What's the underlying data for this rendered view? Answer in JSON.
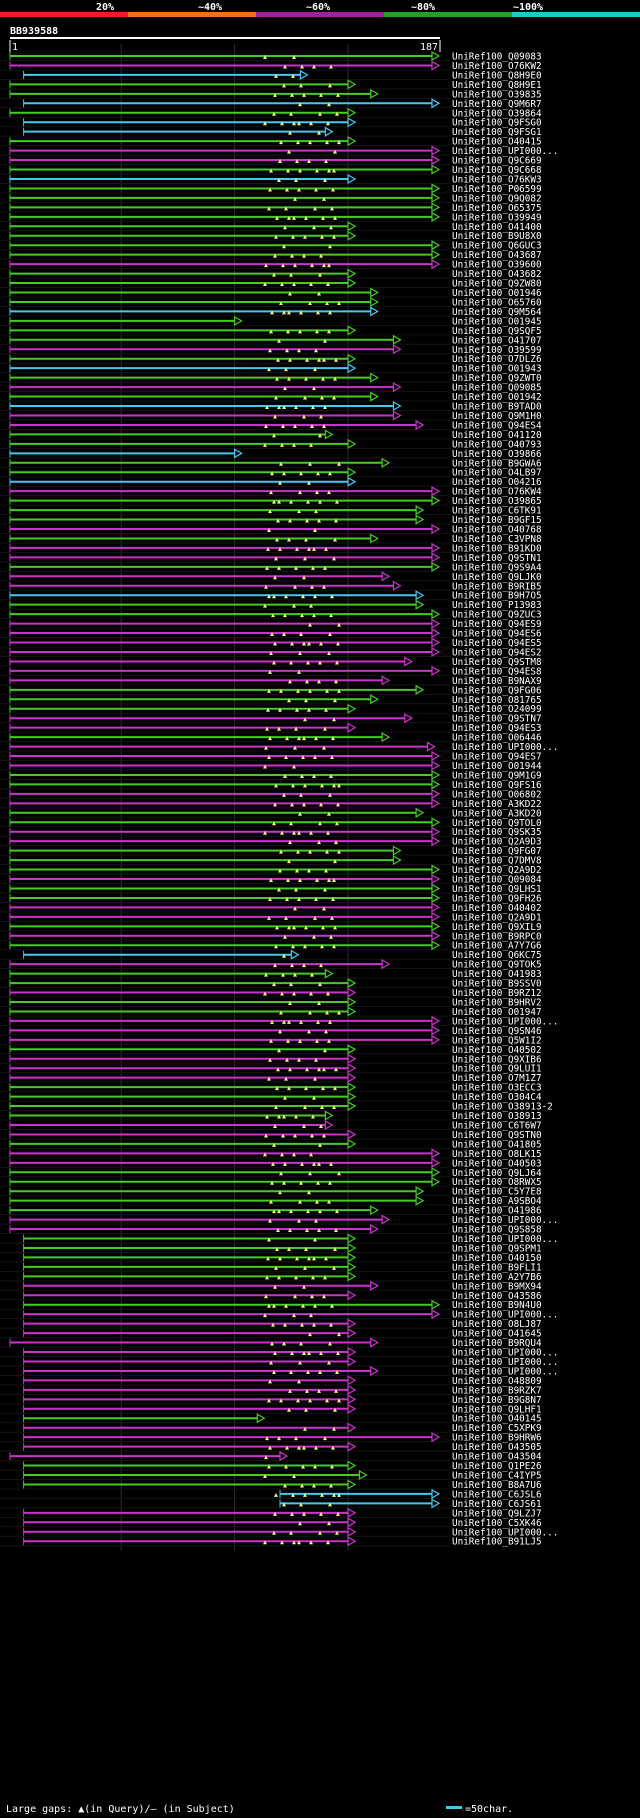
{
  "chart_data": {
    "type": "alignment-overview",
    "query_id": "BB939588",
    "query_start": "1",
    "query_end": "187",
    "query_length": 187,
    "scale": {
      "labels": [
        "20%",
        "~40%",
        "~60%",
        "~80%",
        "~100%"
      ],
      "colors": [
        "#ee1c24",
        "#f07020",
        "#a020a0",
        "#22a020",
        "#22c8c8"
      ]
    },
    "series_colors": {
      "cyan": "#44c8ee",
      "green": "#44cc22",
      "magenta": "#cc33cc",
      "gap_marker": "#eeee88"
    },
    "hits": [
      {
        "id": "UniRef100_Q09083",
        "color": "green",
        "start": 1,
        "end": 187
      },
      {
        "id": "UniRef100_O76KW2",
        "color": "magenta",
        "start": 1,
        "end": 187
      },
      {
        "id": "UniRef100_Q8H9E0",
        "color": "cyan",
        "start": 7,
        "end": 129
      },
      {
        "id": "UniRef100_Q8H9E1",
        "color": "green",
        "start": 1,
        "end": 150
      },
      {
        "id": "UniRef100_O39835",
        "color": "green",
        "start": 1,
        "end": 160
      },
      {
        "id": "UniRef100_Q9M6R7",
        "color": "cyan",
        "start": 7,
        "end": 187
      },
      {
        "id": "UniRef100_O39864",
        "color": "green",
        "start": 1,
        "end": 150
      },
      {
        "id": "UniRef100_Q9FSG0",
        "color": "cyan",
        "start": 7,
        "end": 150
      },
      {
        "id": "UniRef100_Q9FSG1",
        "color": "cyan",
        "start": 7,
        "end": 140
      },
      {
        "id": "UniRef100_O40415",
        "color": "green",
        "start": 1,
        "end": 150
      },
      {
        "id": "UniRef100_UPI000...",
        "color": "magenta",
        "start": 1,
        "end": 187
      },
      {
        "id": "UniRef100_Q9C669",
        "color": "magenta",
        "start": 1,
        "end": 187
      },
      {
        "id": "UniRef100_Q9C668",
        "color": "green",
        "start": 1,
        "end": 187
      },
      {
        "id": "UniRef100_O76KW3",
        "color": "cyan",
        "start": 1,
        "end": 150
      },
      {
        "id": "UniRef100_P06599",
        "color": "green",
        "start": 1,
        "end": 187
      },
      {
        "id": "UniRef100_Q9Q082",
        "color": "green",
        "start": 1,
        "end": 187
      },
      {
        "id": "UniRef100_O65375",
        "color": "green",
        "start": 1,
        "end": 187
      },
      {
        "id": "UniRef100_O39949",
        "color": "green",
        "start": 1,
        "end": 187
      },
      {
        "id": "UniRef100_O41400",
        "color": "green",
        "start": 1,
        "end": 150
      },
      {
        "id": "UniRef100_B9U8X0",
        "color": "green",
        "start": 1,
        "end": 150
      },
      {
        "id": "UniRef100_Q6GUC3",
        "color": "green",
        "start": 1,
        "end": 187
      },
      {
        "id": "UniRef100_O43687",
        "color": "green",
        "start": 1,
        "end": 187
      },
      {
        "id": "UniRef100_O39600",
        "color": "magenta",
        "start": 1,
        "end": 187
      },
      {
        "id": "UniRef100_O43682",
        "color": "green",
        "start": 1,
        "end": 150
      },
      {
        "id": "UniRef100_Q9ZW80",
        "color": "green",
        "start": 1,
        "end": 150
      },
      {
        "id": "UniRef100_O01946",
        "color": "green",
        "start": 1,
        "end": 160
      },
      {
        "id": "UniRef100_O65760",
        "color": "green",
        "start": 1,
        "end": 160
      },
      {
        "id": "UniRef100_Q9M564",
        "color": "cyan",
        "start": 1,
        "end": 160
      },
      {
        "id": "UniRef100_O01945",
        "color": "green",
        "start": 1,
        "end": 100
      },
      {
        "id": "UniRef100_Q9SQF5",
        "color": "green",
        "start": 1,
        "end": 150
      },
      {
        "id": "UniRef100_O41707",
        "color": "green",
        "start": 1,
        "end": 170
      },
      {
        "id": "UniRef100_O39599",
        "color": "magenta",
        "start": 1,
        "end": 170
      },
      {
        "id": "UniRef100_O7DLZ6",
        "color": "green",
        "start": 1,
        "end": 150
      },
      {
        "id": "UniRef100_O01943",
        "color": "cyan",
        "start": 1,
        "end": 150
      },
      {
        "id": "UniRef100_Q9ZWT0",
        "color": "green",
        "start": 1,
        "end": 160
      },
      {
        "id": "UniRef100_Q09085",
        "color": "magenta",
        "start": 1,
        "end": 170
      },
      {
        "id": "UniRef100_O01942",
        "color": "green",
        "start": 1,
        "end": 160
      },
      {
        "id": "UniRef100_B9TAD0",
        "color": "cyan",
        "start": 1,
        "end": 170
      },
      {
        "id": "UniRef100_Q9M1H0",
        "color": "magenta",
        "start": 1,
        "end": 170
      },
      {
        "id": "UniRef100_Q94ES4",
        "color": "magenta",
        "start": 1,
        "end": 180
      },
      {
        "id": "UniRef100_O41120",
        "color": "green",
        "start": 1,
        "end": 140
      },
      {
        "id": "UniRef100_O40793",
        "color": "green",
        "start": 1,
        "end": 150
      },
      {
        "id": "UniRef100_O39866",
        "color": "cyan",
        "start": 1,
        "end": 100
      },
      {
        "id": "UniRef100_B9GWA6",
        "color": "green",
        "start": 1,
        "end": 165
      },
      {
        "id": "UniRef100_O4LB97",
        "color": "green",
        "start": 1,
        "end": 150
      },
      {
        "id": "UniRef100_O04216",
        "color": "cyan",
        "start": 1,
        "end": 150
      },
      {
        "id": "UniRef100_O76KW4",
        "color": "magenta",
        "start": 1,
        "end": 187
      },
      {
        "id": "UniRef100_O39865",
        "color": "green",
        "start": 1,
        "end": 187
      },
      {
        "id": "UniRef100_C6TK91",
        "color": "green",
        "start": 1,
        "end": 180
      },
      {
        "id": "UniRef100_B9GF15",
        "color": "green",
        "start": 1,
        "end": 180
      },
      {
        "id": "UniRef100_O40768",
        "color": "magenta",
        "start": 1,
        "end": 187
      },
      {
        "id": "UniRef100_C3VPN8",
        "color": "green",
        "start": 1,
        "end": 160
      },
      {
        "id": "UniRef100_B91KD0",
        "color": "magenta",
        "start": 1,
        "end": 187
      },
      {
        "id": "UniRef100_Q9STN1",
        "color": "magenta",
        "start": 1,
        "end": 187
      },
      {
        "id": "UniRef100_Q9S9A4",
        "color": "green",
        "start": 1,
        "end": 187
      },
      {
        "id": "UniRef100_Q9LJK0",
        "color": "magenta",
        "start": 1,
        "end": 165
      },
      {
        "id": "UniRef100_B9RIB5",
        "color": "magenta",
        "start": 1,
        "end": 170
      },
      {
        "id": "UniRef100_B9H7O5",
        "color": "cyan",
        "start": 1,
        "end": 180
      },
      {
        "id": "UniRef100_P13983",
        "color": "green",
        "start": 1,
        "end": 180
      },
      {
        "id": "UniRef100_Q9ZUC3",
        "color": "green",
        "start": 1,
        "end": 187
      },
      {
        "id": "UniRef100_Q94ES9",
        "color": "magenta",
        "start": 1,
        "end": 187
      },
      {
        "id": "UniRef100_Q94ES6",
        "color": "magenta",
        "start": 1,
        "end": 187
      },
      {
        "id": "UniRef100_Q94ES5",
        "color": "magenta",
        "start": 1,
        "end": 187
      },
      {
        "id": "UniRef100_Q94ES2",
        "color": "magenta",
        "start": 1,
        "end": 187
      },
      {
        "id": "UniRef100_Q9STM8",
        "color": "magenta",
        "start": 1,
        "end": 175
      },
      {
        "id": "UniRef100_Q94ES8",
        "color": "magenta",
        "start": 1,
        "end": 187
      },
      {
        "id": "UniRef100_B9NAX9",
        "color": "magenta",
        "start": 1,
        "end": 165
      },
      {
        "id": "UniRef100_Q9FG06",
        "color": "green",
        "start": 1,
        "end": 180
      },
      {
        "id": "UniRef100_O81765",
        "color": "green",
        "start": 1,
        "end": 160
      },
      {
        "id": "UniRef100_O24099",
        "color": "green",
        "start": 1,
        "end": 150
      },
      {
        "id": "UniRef100_Q9STN7",
        "color": "magenta",
        "start": 1,
        "end": 175
      },
      {
        "id": "UniRef100_Q94ES3",
        "color": "magenta",
        "start": 1,
        "end": 150
      },
      {
        "id": "UniRef100_O06446",
        "color": "green",
        "start": 1,
        "end": 165
      },
      {
        "id": "UniRef100_UPI000...",
        "color": "magenta",
        "start": 1,
        "end": 185
      },
      {
        "id": "UniRef100_Q94ES7",
        "color": "magenta",
        "start": 1,
        "end": 187
      },
      {
        "id": "UniRef100_O01944",
        "color": "magenta",
        "start": 1,
        "end": 187
      },
      {
        "id": "UniRef100_Q9M1G9",
        "color": "green",
        "start": 1,
        "end": 187
      },
      {
        "id": "UniRef100_Q9FS16",
        "color": "green",
        "start": 1,
        "end": 187
      },
      {
        "id": "UniRef100_O06802",
        "color": "magenta",
        "start": 1,
        "end": 187
      },
      {
        "id": "UniRef100_A3KD22",
        "color": "magenta",
        "start": 1,
        "end": 187
      },
      {
        "id": "UniRef100_A3KD20",
        "color": "green",
        "start": 1,
        "end": 180
      },
      {
        "id": "UniRef100_Q9TOL0",
        "color": "green",
        "start": 1,
        "end": 187
      },
      {
        "id": "UniRef100_Q9SK35",
        "color": "magenta",
        "start": 1,
        "end": 187
      },
      {
        "id": "UniRef100_Q2A9D3",
        "color": "magenta",
        "start": 1,
        "end": 187
      },
      {
        "id": "UniRef100_Q9FG07",
        "color": "green",
        "start": 1,
        "end": 170
      },
      {
        "id": "UniRef100_Q7DMV8",
        "color": "green",
        "start": 1,
        "end": 170
      },
      {
        "id": "UniRef100_Q2A9D2",
        "color": "green",
        "start": 1,
        "end": 187
      },
      {
        "id": "UniRef100_Q09084",
        "color": "magenta",
        "start": 1,
        "end": 187
      },
      {
        "id": "UniRef100_Q9LHS1",
        "color": "green",
        "start": 1,
        "end": 187
      },
      {
        "id": "UniRef100_Q9FH26",
        "color": "green",
        "start": 1,
        "end": 187
      },
      {
        "id": "UniRef100_O40402",
        "color": "magenta",
        "start": 1,
        "end": 187
      },
      {
        "id": "UniRef100_Q2A9D1",
        "color": "magenta",
        "start": 1,
        "end": 187
      },
      {
        "id": "UniRef100_Q9XIL9",
        "color": "green",
        "start": 1,
        "end": 187
      },
      {
        "id": "UniRef100_B9RPC0",
        "color": "magenta",
        "start": 1,
        "end": 187
      },
      {
        "id": "UniRef100_A7Y7G6",
        "color": "green",
        "start": 1,
        "end": 187
      },
      {
        "id": "UniRef100_Q6KC75",
        "color": "cyan",
        "start": 7,
        "end": 125
      },
      {
        "id": "UniRef100_Q9TOK5",
        "color": "magenta",
        "start": 1,
        "end": 165
      },
      {
        "id": "UniRef100_O41983",
        "color": "green",
        "start": 1,
        "end": 140
      },
      {
        "id": "UniRef100_B9SSV0",
        "color": "green",
        "start": 1,
        "end": 150
      },
      {
        "id": "UniRef100_B9RZ12",
        "color": "magenta",
        "start": 1,
        "end": 150
      },
      {
        "id": "UniRef100_B9HRV2",
        "color": "green",
        "start": 1,
        "end": 150
      },
      {
        "id": "UniRef100_O01947",
        "color": "green",
        "start": 1,
        "end": 150
      },
      {
        "id": "UniRef100_UPI000...",
        "color": "magenta",
        "start": 1,
        "end": 187
      },
      {
        "id": "UniRef100_Q9SN46",
        "color": "magenta",
        "start": 1,
        "end": 187
      },
      {
        "id": "UniRef100_Q5W1I2",
        "color": "magenta",
        "start": 1,
        "end": 187
      },
      {
        "id": "UniRef100_O40502",
        "color": "green",
        "start": 1,
        "end": 150
      },
      {
        "id": "UniRef100_Q9XIB6",
        "color": "magenta",
        "start": 1,
        "end": 150
      },
      {
        "id": "UniRef100_Q9LUI1",
        "color": "magenta",
        "start": 1,
        "end": 150
      },
      {
        "id": "UniRef100_O7M1Z7",
        "color": "magenta",
        "start": 1,
        "end": 150
      },
      {
        "id": "UniRef100_O3ECC3",
        "color": "green",
        "start": 1,
        "end": 150
      },
      {
        "id": "UniRef100_O304C4",
        "color": "green",
        "start": 1,
        "end": 150
      },
      {
        "id": "UniRef100_O38913-2",
        "color": "green",
        "start": 1,
        "end": 150
      },
      {
        "id": "UniRef100_O38913",
        "color": "green",
        "start": 1,
        "end": 140
      },
      {
        "id": "UniRef100_C6T6W7",
        "color": "magenta",
        "start": 1,
        "end": 140
      },
      {
        "id": "UniRef100_Q9STN0",
        "color": "magenta",
        "start": 1,
        "end": 150
      },
      {
        "id": "UniRef100_O41805",
        "color": "green",
        "start": 1,
        "end": 150
      },
      {
        "id": "UniRef100_O8LK15",
        "color": "magenta",
        "start": 1,
        "end": 187
      },
      {
        "id": "UniRef100_O40503",
        "color": "magenta",
        "start": 1,
        "end": 187
      },
      {
        "id": "UniRef100_Q9LJ64",
        "color": "green",
        "start": 1,
        "end": 187
      },
      {
        "id": "UniRef100_O8RWX5",
        "color": "green",
        "start": 1,
        "end": 187
      },
      {
        "id": "UniRef100_C5Y7E8",
        "color": "green",
        "start": 1,
        "end": 180
      },
      {
        "id": "UniRef100_A9SBO4",
        "color": "green",
        "start": 1,
        "end": 180
      },
      {
        "id": "UniRef100_O41986",
        "color": "green",
        "start": 1,
        "end": 160
      },
      {
        "id": "UniRef100_UPI000...",
        "color": "magenta",
        "start": 1,
        "end": 165
      },
      {
        "id": "UniRef100_Q9S858",
        "color": "magenta",
        "start": 1,
        "end": 160
      },
      {
        "id": "UniRef100_UPI000...",
        "color": "green",
        "start": 7,
        "end": 150
      },
      {
        "id": "UniRef100_Q9SPM1",
        "color": "green",
        "start": 7,
        "end": 150
      },
      {
        "id": "UniRef100_O40150",
        "color": "green",
        "start": 7,
        "end": 150
      },
      {
        "id": "UniRef100_B9FLI1",
        "color": "green",
        "start": 7,
        "end": 150
      },
      {
        "id": "UniRef100_A2Y7B6",
        "color": "green",
        "start": 7,
        "end": 150
      },
      {
        "id": "UniRef100_B9MX94",
        "color": "magenta",
        "start": 7,
        "end": 160
      },
      {
        "id": "UniRef100_O43586",
        "color": "magenta",
        "start": 7,
        "end": 150
      },
      {
        "id": "UniRef100_B9N4U0",
        "color": "green",
        "start": 7,
        "end": 187
      },
      {
        "id": "UniRef100_UPI000...",
        "color": "magenta",
        "start": 7,
        "end": 187
      },
      {
        "id": "UniRef100_O8LJ87",
        "color": "magenta",
        "start": 7,
        "end": 150
      },
      {
        "id": "UniRef100_O41645",
        "color": "magenta",
        "start": 7,
        "end": 150
      },
      {
        "id": "UniRef100_B9RQU4",
        "color": "magenta",
        "start": 1,
        "end": 160
      },
      {
        "id": "UniRef100_UPI000...",
        "color": "magenta",
        "start": 7,
        "end": 150
      },
      {
        "id": "UniRef100_UPI000...",
        "color": "magenta",
        "start": 7,
        "end": 150
      },
      {
        "id": "UniRef100_UPI000...",
        "color": "magenta",
        "start": 7,
        "end": 160
      },
      {
        "id": "UniRef100_O48809",
        "color": "magenta",
        "start": 7,
        "end": 150
      },
      {
        "id": "UniRef100_B9RZK7",
        "color": "magenta",
        "start": 7,
        "end": 150
      },
      {
        "id": "UniRef100_B9G8N7",
        "color": "magenta",
        "start": 7,
        "end": 150
      },
      {
        "id": "UniRef100_Q9LHF1",
        "color": "magenta",
        "start": 7,
        "end": 150
      },
      {
        "id": "UniRef100_O40145",
        "color": "green",
        "start": 7,
        "end": 110
      },
      {
        "id": "UniRef100_C5XPK9",
        "color": "magenta",
        "start": 7,
        "end": 150
      },
      {
        "id": "UniRef100_B9HRW6",
        "color": "magenta",
        "start": 7,
        "end": 187
      },
      {
        "id": "UniRef100_O43505",
        "color": "magenta",
        "start": 7,
        "end": 150
      },
      {
        "id": "UniRef100_O43504",
        "color": "magenta",
        "start": 1,
        "end": 120
      },
      {
        "id": "UniRef100_Q1PE26",
        "color": "green",
        "start": 7,
        "end": 150
      },
      {
        "id": "UniRef100_C4IYP5",
        "color": "green",
        "start": 7,
        "end": 155
      },
      {
        "id": "UniRef100_B8A7U6",
        "color": "green",
        "start": 7,
        "end": 150
      },
      {
        "id": "UniRef100_C6JSL6",
        "color": "cyan",
        "start": 120,
        "end": 187
      },
      {
        "id": "UniRef100_C6JS61",
        "color": "cyan",
        "start": 120,
        "end": 187
      },
      {
        "id": "UniRef100_Q9LZJ7",
        "color": "magenta",
        "start": 7,
        "end": 150
      },
      {
        "id": "UniRef100_C5XK46",
        "color": "magenta",
        "start": 7,
        "end": 150
      },
      {
        "id": "UniRef100_UPI000...",
        "color": "magenta",
        "start": 7,
        "end": 150
      },
      {
        "id": "UniRef100_B91LJ5",
        "color": "magenta",
        "start": 7,
        "end": 150
      }
    ],
    "legend": {
      "gaps_text": "Large gaps: ▲(in Query)/– (in Subject)",
      "scale_text": "=50char."
    }
  }
}
